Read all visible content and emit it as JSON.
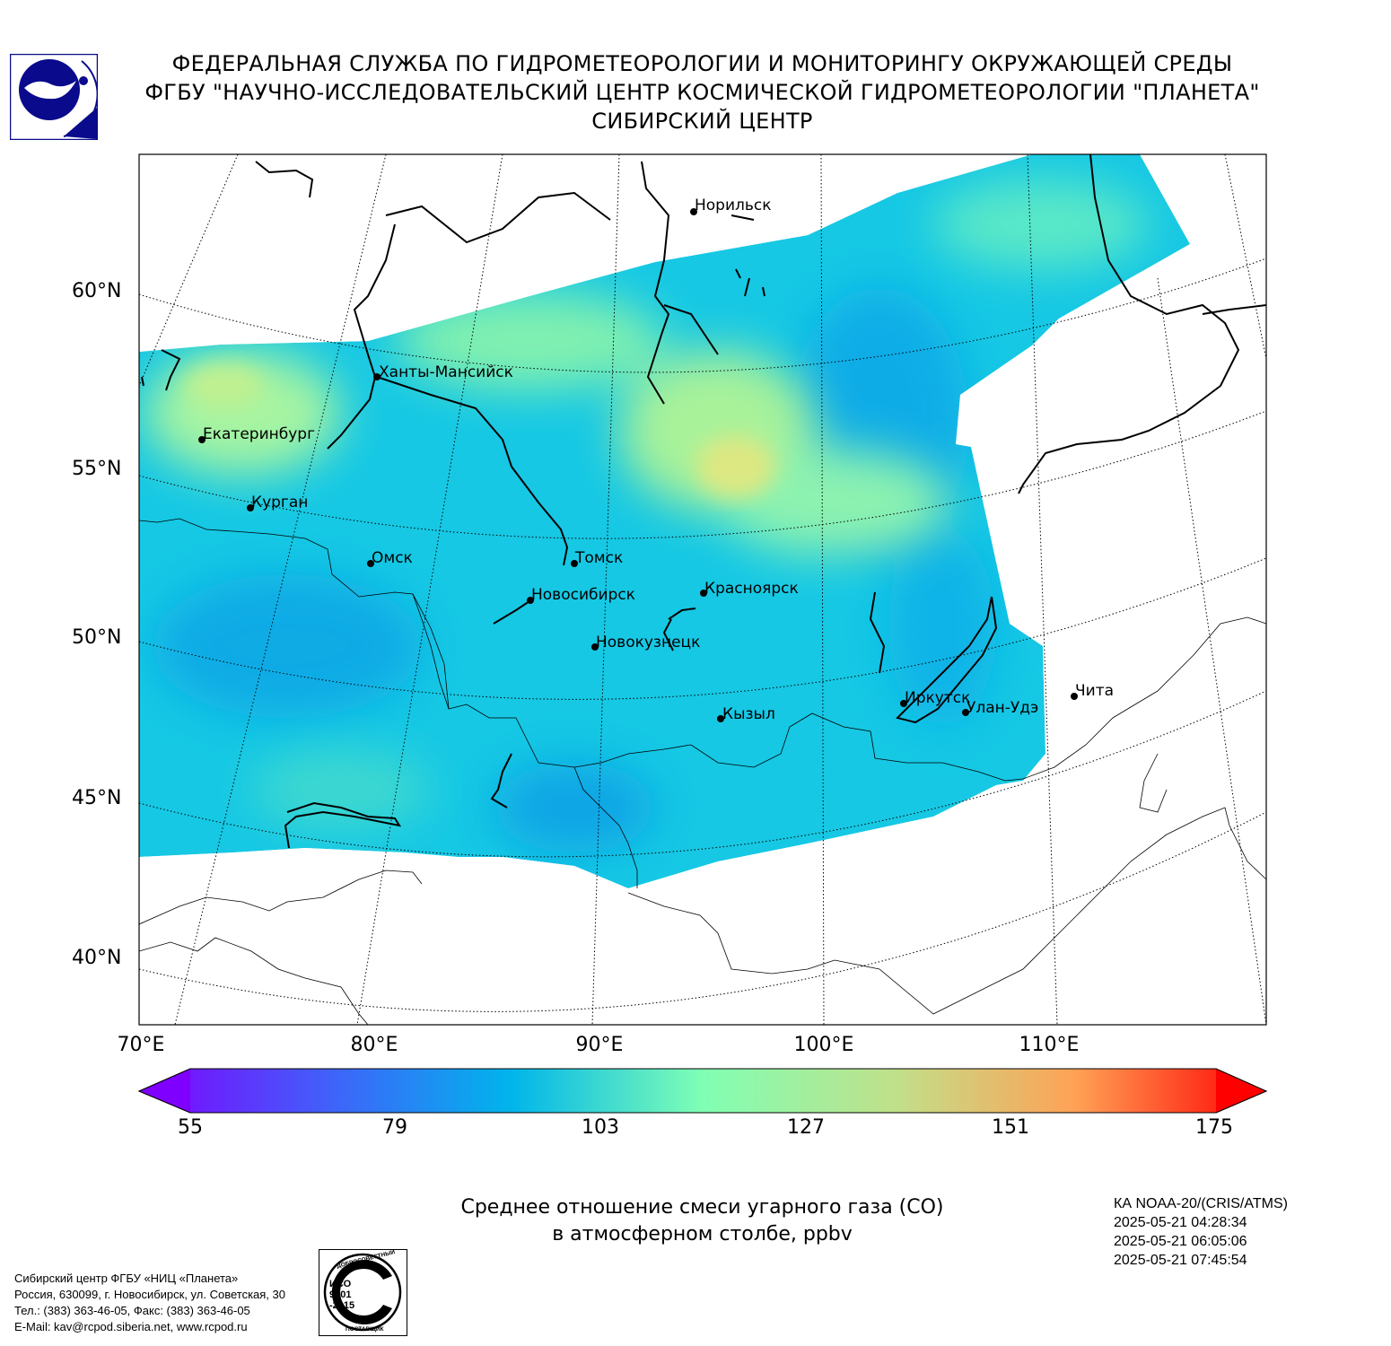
{
  "header": {
    "line1": "ФЕДЕРАЛЬНАЯ СЛУЖБА ПО ГИДРОМЕТЕОРОЛОГИИ И МОНИТОРИНГУ ОКРУЖАЮЩЕЙ СРЕДЫ",
    "line2": "ФГБУ \"НАУЧНО-ИССЛЕДОВАТЕЛЬСКИЙ ЦЕНТР КОСМИЧЕСКОЙ ГИДРОМЕТЕОРОЛОГИИ \"ПЛАНЕТА\"",
    "line3": "СИБИРСКИЙ ЦЕНТР"
  },
  "logo": {
    "icon": "planeta-logo-icon",
    "color": "#0a0a8c"
  },
  "map": {
    "lat_labels": [
      "60°N",
      "55°N",
      "50°N",
      "45°N",
      "40°N"
    ],
    "lon_labels": [
      "70°E",
      "80°E",
      "90°E",
      "100°E",
      "110°E"
    ],
    "cities": [
      {
        "name": "Норильск"
      },
      {
        "name": "Ханты-Мансийск"
      },
      {
        "name": "Екатеринбург"
      },
      {
        "name": "Курган"
      },
      {
        "name": "Омск"
      },
      {
        "name": "Томск"
      },
      {
        "name": "Новосибирск"
      },
      {
        "name": "Красноярск"
      },
      {
        "name": "Новокузнецк"
      },
      {
        "name": "Кызыл"
      },
      {
        "name": "Иркутск"
      },
      {
        "name": "Улан-Удэ"
      },
      {
        "name": "Чита"
      }
    ]
  },
  "colorbar": {
    "min": 55,
    "max": 175,
    "ticks": [
      "55",
      "79",
      "103",
      "127",
      "151",
      "175"
    ],
    "colormap": "rainbow",
    "extend": "both"
  },
  "caption": {
    "line1": "Среднее отношение смеси угарного газа (CO)",
    "line2": "в атмосферном столбе, ppbv"
  },
  "satellite": {
    "name": "КА NOAA-20/(CRIS/ATMS)",
    "passes": [
      "2025-05-21 04:28:34",
      "2025-05-21 06:05:06",
      "2025-05-21 07:45:54"
    ]
  },
  "footer": {
    "line1": "Сибирский центр ФГБУ «НИЦ «Планета»",
    "line2": "Россия, 630099, г. Новосибирск, ул. Советская, 30",
    "line3": "Тел.: (383) 363-46-05, Факс: (383) 363-46-05",
    "line4": "E-Mail: kav@rcpod.siberia.net, www.rcpod.ru"
  },
  "iso_badge": {
    "top_text": "ДОБРОСОВЕСТНЫЙ",
    "line1": "ИСО",
    "line2": "9001",
    "line3": "-2015",
    "bottom_text": "ПОСТАВЩИК"
  }
}
